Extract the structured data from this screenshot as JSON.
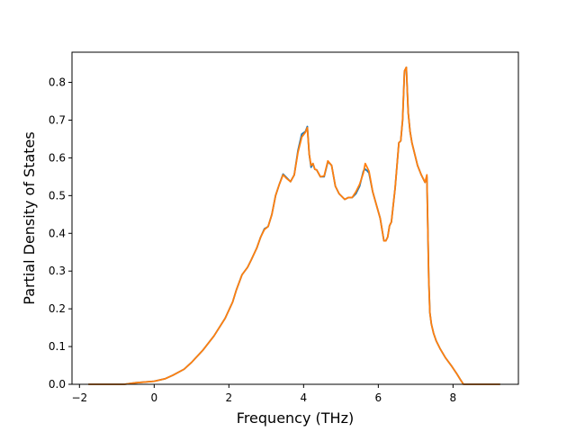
{
  "chart_data": {
    "type": "line",
    "title": "",
    "xlabel": "Frequency (THz)",
    "ylabel": "Partial Density of States",
    "xlim": [
      -2.2,
      9.75
    ],
    "ylim": [
      0.0,
      0.88
    ],
    "xticks": [
      -2,
      0,
      2,
      4,
      6,
      8
    ],
    "yticks": [
      0.0,
      0.1,
      0.2,
      0.3,
      0.4,
      0.5,
      0.6,
      0.7,
      0.8
    ],
    "xtick_labels": [
      "−2",
      "0",
      "2",
      "4",
      "6",
      "8"
    ],
    "ytick_labels": [
      "0.0",
      "0.1",
      "0.2",
      "0.3",
      "0.4",
      "0.5",
      "0.6",
      "0.7",
      "0.8"
    ],
    "grid": false,
    "series": [
      {
        "color": "#1f77b4",
        "x": [
          -1.75,
          -0.8,
          -0.5,
          0.0,
          0.3,
          0.5,
          0.8,
          1.0,
          1.3,
          1.6,
          1.9,
          2.1,
          2.2,
          2.35,
          2.5,
          2.6,
          2.75,
          2.85,
          2.95,
          3.05,
          3.15,
          3.25,
          3.35,
          3.45,
          3.55,
          3.65,
          3.75,
          3.85,
          3.95,
          4.05,
          4.1,
          4.15,
          4.2,
          4.25,
          4.3,
          4.35,
          4.45,
          4.55,
          4.65,
          4.75,
          4.85,
          4.95,
          5.1,
          5.2,
          5.3,
          5.4,
          5.5,
          5.6,
          5.65,
          5.7,
          5.75,
          5.85,
          5.95,
          6.05,
          6.1,
          6.15,
          6.2,
          6.25,
          6.3,
          6.35,
          6.45,
          6.55,
          6.6,
          6.65,
          6.7,
          6.75,
          6.8,
          6.85,
          6.9,
          6.95,
          7.05,
          7.15,
          7.25,
          7.3,
          7.35,
          7.38,
          7.42,
          7.48,
          7.55,
          7.65,
          7.8,
          7.95,
          8.1,
          8.2,
          8.28,
          8.32,
          8.4,
          8.6,
          9.25
        ],
        "y": [
          0.0,
          0.0,
          0.004,
          0.008,
          0.015,
          0.024,
          0.04,
          0.058,
          0.09,
          0.128,
          0.175,
          0.218,
          0.25,
          0.29,
          0.31,
          0.33,
          0.362,
          0.39,
          0.412,
          0.418,
          0.45,
          0.5,
          0.53,
          0.557,
          0.547,
          0.537,
          0.555,
          0.62,
          0.663,
          0.67,
          0.683,
          0.61,
          0.575,
          0.585,
          0.57,
          0.568,
          0.55,
          0.55,
          0.59,
          0.58,
          0.525,
          0.505,
          0.49,
          0.495,
          0.495,
          0.505,
          0.525,
          0.565,
          0.57,
          0.566,
          0.56,
          0.51,
          0.475,
          0.44,
          0.41,
          0.38,
          0.38,
          0.39,
          0.42,
          0.43,
          0.52,
          0.64,
          0.645,
          0.7,
          0.83,
          0.84,
          0.72,
          0.67,
          0.64,
          0.62,
          0.58,
          0.555,
          0.535,
          0.55,
          0.28,
          0.19,
          0.16,
          0.135,
          0.115,
          0.095,
          0.07,
          0.05,
          0.028,
          0.012,
          0.0,
          0.0,
          0.0,
          0.0,
          0.0
        ]
      },
      {
        "color": "#ff7f0e",
        "x": [
          -1.75,
          -0.8,
          -0.5,
          0.0,
          0.3,
          0.5,
          0.8,
          1.0,
          1.3,
          1.6,
          1.9,
          2.1,
          2.2,
          2.35,
          2.5,
          2.6,
          2.75,
          2.85,
          2.95,
          3.05,
          3.15,
          3.25,
          3.35,
          3.45,
          3.55,
          3.65,
          3.75,
          3.85,
          3.95,
          4.05,
          4.1,
          4.15,
          4.2,
          4.25,
          4.3,
          4.35,
          4.45,
          4.55,
          4.65,
          4.75,
          4.85,
          4.95,
          5.1,
          5.2,
          5.3,
          5.4,
          5.5,
          5.6,
          5.65,
          5.7,
          5.75,
          5.85,
          5.95,
          6.05,
          6.1,
          6.15,
          6.2,
          6.25,
          6.3,
          6.35,
          6.45,
          6.55,
          6.6,
          6.65,
          6.7,
          6.75,
          6.8,
          6.85,
          6.9,
          6.95,
          7.05,
          7.15,
          7.25,
          7.3,
          7.35,
          7.38,
          7.42,
          7.48,
          7.55,
          7.65,
          7.8,
          7.95,
          8.1,
          8.2,
          8.28,
          8.32,
          8.4,
          8.6,
          9.25
        ],
        "y": [
          0.0,
          0.0,
          0.004,
          0.008,
          0.015,
          0.024,
          0.04,
          0.058,
          0.09,
          0.128,
          0.175,
          0.218,
          0.25,
          0.29,
          0.31,
          0.33,
          0.362,
          0.39,
          0.41,
          0.418,
          0.45,
          0.5,
          0.53,
          0.555,
          0.545,
          0.537,
          0.555,
          0.615,
          0.655,
          0.668,
          0.68,
          0.61,
          0.58,
          0.585,
          0.57,
          0.568,
          0.55,
          0.552,
          0.592,
          0.58,
          0.525,
          0.505,
          0.49,
          0.495,
          0.495,
          0.51,
          0.53,
          0.56,
          0.585,
          0.575,
          0.565,
          0.51,
          0.475,
          0.44,
          0.41,
          0.38,
          0.38,
          0.39,
          0.42,
          0.43,
          0.52,
          0.64,
          0.645,
          0.7,
          0.83,
          0.84,
          0.72,
          0.67,
          0.64,
          0.62,
          0.58,
          0.555,
          0.535,
          0.555,
          0.28,
          0.19,
          0.16,
          0.135,
          0.115,
          0.095,
          0.07,
          0.05,
          0.028,
          0.012,
          0.0,
          0.0,
          0.0,
          0.0,
          0.0
        ]
      }
    ]
  }
}
